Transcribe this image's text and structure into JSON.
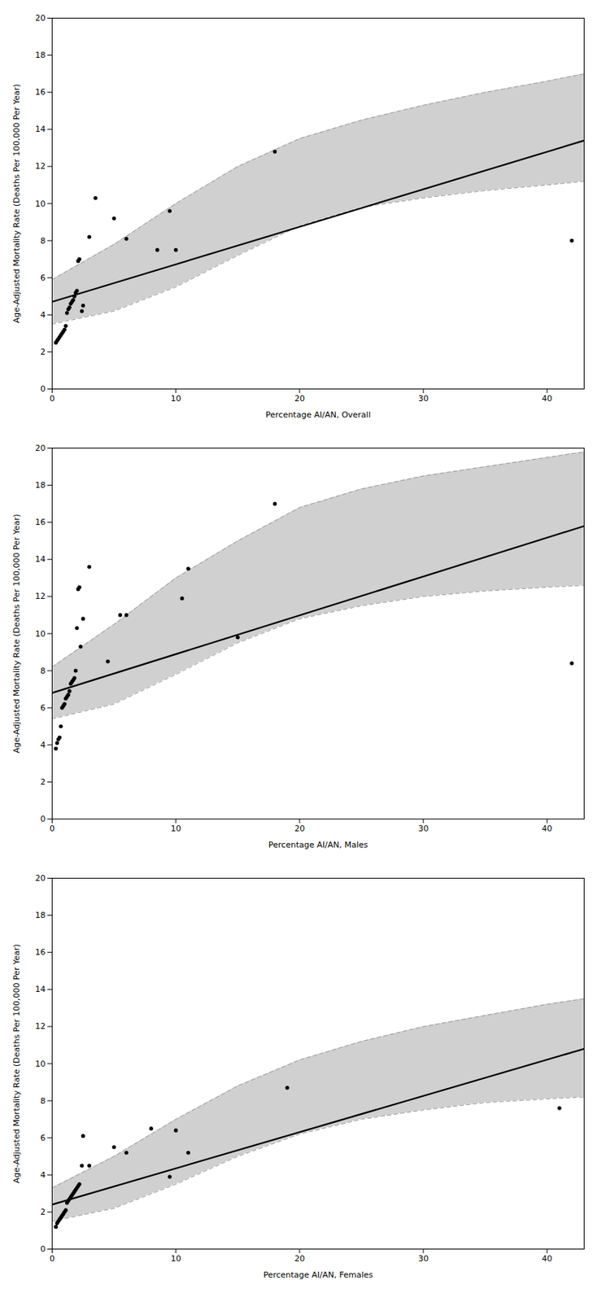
{
  "chart_data": [
    {
      "type": "scatter",
      "xlabel": "Percentage AI/AN, Overall",
      "ylabel": "Age-Adjusted Mortality Rate (Deaths Per 100,000 Per Year)",
      "xlim": [
        0,
        43
      ],
      "ylim": [
        0,
        20
      ],
      "xticks": [
        0,
        10,
        20,
        30,
        40
      ],
      "yticks": [
        0,
        2,
        4,
        6,
        8,
        10,
        12,
        14,
        16,
        18,
        20
      ],
      "grid": false,
      "series": [
        {
          "type": "area",
          "color": "#d0d0d0",
          "x": [
            0,
            5,
            10,
            15,
            20,
            25,
            30,
            35,
            40,
            43
          ],
          "lower": [
            3.5,
            4.2,
            5.5,
            7.2,
            8.8,
            9.8,
            10.3,
            10.7,
            11.0,
            11.2
          ],
          "upper": [
            5.9,
            7.8,
            10.0,
            12.0,
            13.5,
            14.5,
            15.3,
            16.0,
            16.6,
            17.0
          ]
        },
        {
          "type": "line",
          "color": "#999999",
          "line_style": "dashed",
          "x": [
            0,
            5,
            10,
            15,
            20,
            25,
            30,
            35,
            40,
            43
          ],
          "values": [
            5.9,
            7.8,
            10.0,
            12.0,
            13.5,
            14.5,
            15.3,
            16.0,
            16.6,
            17.0
          ]
        },
        {
          "type": "line",
          "color": "#999999",
          "line_style": "dashed",
          "x": [
            0,
            5,
            10,
            15,
            20,
            25,
            30,
            35,
            40,
            43
          ],
          "values": [
            3.5,
            4.2,
            5.5,
            7.2,
            8.8,
            9.8,
            10.3,
            10.7,
            11.0,
            11.2
          ]
        },
        {
          "type": "line",
          "color": "#000000",
          "line_style": "solid",
          "x": [
            0,
            43
          ],
          "values": [
            4.7,
            13.4
          ]
        },
        {
          "type": "scatter",
          "color": "#000000",
          "marker": "o",
          "x": [
            0.3,
            0.4,
            0.5,
            0.6,
            0.7,
            0.8,
            0.9,
            1.0,
            1.1,
            1.2,
            1.3,
            1.4,
            1.5,
            1.6,
            1.7,
            1.8,
            1.9,
            2.0,
            2.1,
            2.2,
            2.4,
            2.5,
            3.0,
            3.5,
            5.0,
            6.0,
            8.5,
            9.5,
            10.0,
            18.0,
            42.0
          ],
          "values": [
            2.5,
            2.6,
            2.7,
            2.8,
            2.9,
            3.0,
            3.1,
            3.2,
            3.4,
            4.1,
            4.3,
            4.4,
            4.6,
            4.7,
            4.8,
            5.0,
            5.2,
            5.3,
            6.9,
            7.0,
            4.2,
            4.5,
            8.2,
            10.3,
            9.2,
            8.1,
            7.5,
            9.6,
            7.5,
            12.8,
            8.0
          ]
        }
      ]
    },
    {
      "type": "scatter",
      "xlabel": "Percentage AI/AN, Males",
      "ylabel": "Age-Adjusted Mortality Rate (Deaths Per 100,000 Per Year)",
      "xlim": [
        0,
        43
      ],
      "ylim": [
        0,
        20
      ],
      "xticks": [
        0,
        10,
        20,
        30,
        40
      ],
      "yticks": [
        0,
        2,
        4,
        6,
        8,
        10,
        12,
        14,
        16,
        18,
        20
      ],
      "grid": false,
      "series": [
        {
          "type": "area",
          "color": "#d0d0d0",
          "x": [
            0,
            5,
            10,
            15,
            20,
            25,
            30,
            35,
            40,
            43
          ],
          "lower": [
            5.4,
            6.2,
            7.8,
            9.5,
            10.8,
            11.5,
            12.0,
            12.3,
            12.5,
            12.6
          ],
          "upper": [
            8.2,
            10.5,
            13.0,
            15.0,
            16.8,
            17.8,
            18.5,
            19.0,
            19.5,
            19.8
          ]
        },
        {
          "type": "line",
          "color": "#999999",
          "line_style": "dashed",
          "x": [
            0,
            5,
            10,
            15,
            20,
            25,
            30,
            35,
            40,
            43
          ],
          "values": [
            8.2,
            10.5,
            13.0,
            15.0,
            16.8,
            17.8,
            18.5,
            19.0,
            19.5,
            19.8
          ]
        },
        {
          "type": "line",
          "color": "#999999",
          "line_style": "dashed",
          "x": [
            0,
            5,
            10,
            15,
            20,
            25,
            30,
            35,
            40,
            43
          ],
          "values": [
            5.4,
            6.2,
            7.8,
            9.5,
            10.8,
            11.5,
            12.0,
            12.3,
            12.5,
            12.6
          ]
        },
        {
          "type": "line",
          "color": "#000000",
          "line_style": "solid",
          "x": [
            0,
            43
          ],
          "values": [
            6.8,
            15.8
          ]
        },
        {
          "type": "scatter",
          "color": "#000000",
          "marker": "o",
          "x": [
            0.3,
            0.4,
            0.5,
            0.6,
            0.7,
            0.8,
            0.9,
            1.0,
            1.1,
            1.2,
            1.3,
            1.4,
            1.5,
            1.6,
            1.7,
            1.8,
            1.9,
            2.0,
            2.1,
            2.2,
            2.3,
            2.5,
            3.0,
            4.5,
            5.5,
            6.0,
            10.5,
            11.0,
            15.0,
            18.0,
            42.0
          ],
          "values": [
            3.8,
            4.1,
            4.3,
            4.4,
            5.0,
            6.0,
            6.1,
            6.2,
            6.5,
            6.6,
            6.7,
            6.9,
            7.3,
            7.4,
            7.5,
            7.6,
            8.0,
            10.3,
            12.4,
            12.5,
            9.3,
            10.8,
            13.6,
            8.5,
            11.0,
            11.0,
            11.9,
            13.5,
            9.8,
            17.0,
            8.4
          ]
        }
      ]
    },
    {
      "type": "scatter",
      "xlabel": "Percentage AI/AN, Females",
      "ylabel": "Age-Adjusted Mortality Rate (Deaths Per 100,000 Per Year)",
      "xlim": [
        0,
        43
      ],
      "ylim": [
        0,
        20
      ],
      "xticks": [
        0,
        10,
        20,
        30,
        40
      ],
      "yticks": [
        0,
        2,
        4,
        6,
        8,
        10,
        12,
        14,
        16,
        18,
        20
      ],
      "grid": false,
      "series": [
        {
          "type": "area",
          "color": "#d0d0d0",
          "x": [
            0,
            5,
            10,
            15,
            20,
            25,
            30,
            35,
            40,
            43
          ],
          "lower": [
            1.5,
            2.2,
            3.5,
            5.0,
            6.2,
            7.0,
            7.5,
            7.9,
            8.1,
            8.2
          ],
          "upper": [
            3.3,
            5.0,
            7.0,
            8.8,
            10.2,
            11.2,
            12.0,
            12.6,
            13.2,
            13.5
          ]
        },
        {
          "type": "line",
          "color": "#999999",
          "line_style": "dashed",
          "x": [
            0,
            5,
            10,
            15,
            20,
            25,
            30,
            35,
            40,
            43
          ],
          "values": [
            3.3,
            5.0,
            7.0,
            8.8,
            10.2,
            11.2,
            12.0,
            12.6,
            13.2,
            13.5
          ]
        },
        {
          "type": "line",
          "color": "#999999",
          "line_style": "dashed",
          "x": [
            0,
            5,
            10,
            15,
            20,
            25,
            30,
            35,
            40,
            43
          ],
          "values": [
            1.5,
            2.2,
            3.5,
            5.0,
            6.2,
            7.0,
            7.5,
            7.9,
            8.1,
            8.2
          ]
        },
        {
          "type": "line",
          "color": "#000000",
          "line_style": "solid",
          "x": [
            0,
            43
          ],
          "values": [
            2.4,
            10.8
          ]
        },
        {
          "type": "scatter",
          "color": "#000000",
          "marker": "o",
          "x": [
            0.3,
            0.4,
            0.5,
            0.6,
            0.7,
            0.8,
            0.9,
            1.0,
            1.1,
            1.2,
            1.3,
            1.4,
            1.5,
            1.6,
            1.7,
            1.8,
            1.9,
            2.0,
            2.1,
            2.2,
            2.4,
            2.5,
            3.0,
            5.0,
            6.0,
            8.0,
            9.5,
            10.0,
            11.0,
            19.0,
            41.0
          ],
          "values": [
            1.2,
            1.4,
            1.5,
            1.6,
            1.7,
            1.8,
            1.9,
            2.0,
            2.1,
            2.5,
            2.6,
            2.7,
            2.8,
            2.9,
            3.0,
            3.1,
            3.2,
            3.3,
            3.4,
            3.5,
            4.5,
            6.1,
            4.5,
            5.5,
            5.2,
            6.5,
            3.9,
            6.4,
            5.2,
            8.7,
            7.6
          ]
        }
      ]
    }
  ]
}
